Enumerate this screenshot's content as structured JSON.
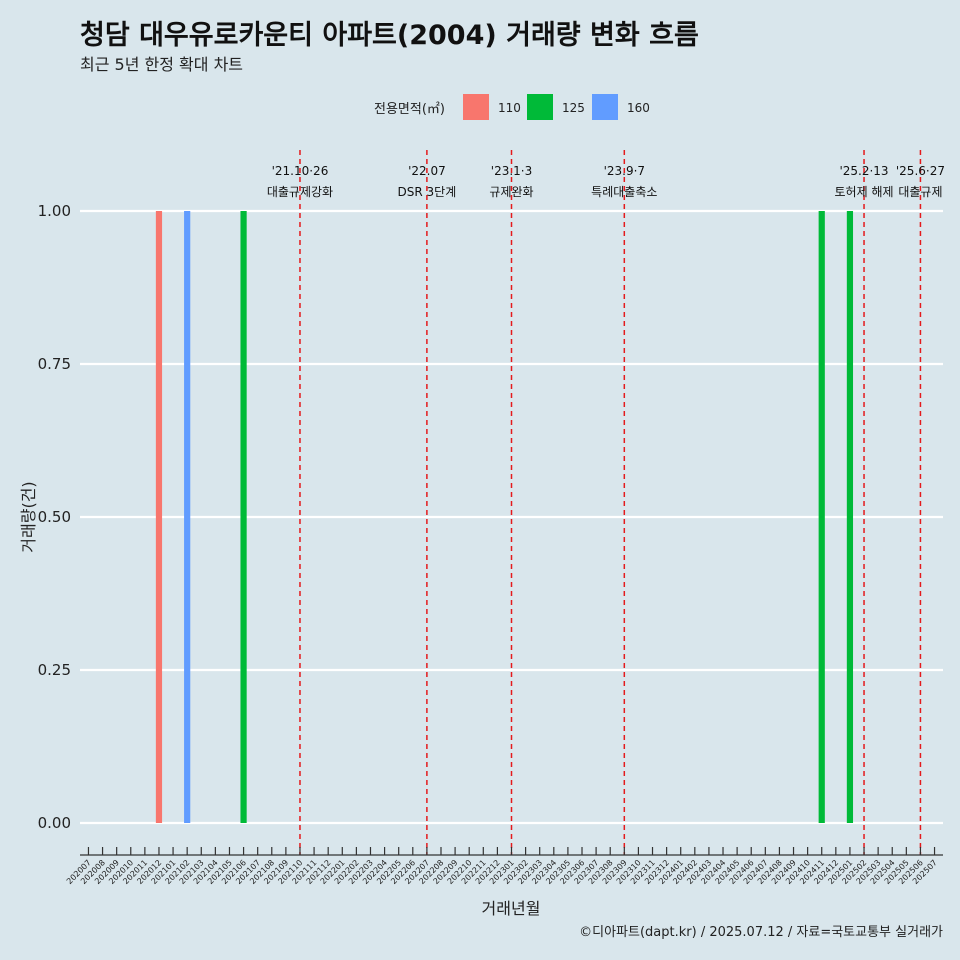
{
  "chart_data": {
    "type": "bar",
    "title": "청담 대우유로카운티 아파트(2004) 거래량 변화 흐름",
    "subtitle": "최근 5년 한정 확대 차트",
    "xlabel": "거래년월",
    "ylabel": "거래량(건)",
    "legend_title": "전용면적(㎡)",
    "legend_position": "top",
    "caption": "©디아파트(dapt.kr) / 2025.07.12 / 자료=국토교통부 실거래가",
    "ylim": [
      0,
      1
    ],
    "yticks": [
      "0.00",
      "0.25",
      "0.50",
      "0.75",
      "1.00"
    ],
    "grid": true,
    "categories": [
      "202007",
      "202008",
      "202009",
      "202010",
      "202011",
      "202012",
      "202101",
      "202102",
      "202103",
      "202104",
      "202105",
      "202106",
      "202107",
      "202108",
      "202109",
      "202110",
      "202111",
      "202112",
      "202201",
      "202202",
      "202203",
      "202204",
      "202205",
      "202206",
      "202207",
      "202208",
      "202209",
      "202210",
      "202211",
      "202212",
      "202301",
      "202302",
      "202303",
      "202304",
      "202305",
      "202306",
      "202307",
      "202308",
      "202309",
      "202310",
      "202311",
      "202312",
      "202401",
      "202402",
      "202403",
      "202404",
      "202405",
      "202406",
      "202407",
      "202408",
      "202409",
      "202410",
      "202411",
      "202412",
      "202501",
      "202502",
      "202503",
      "202504",
      "202505",
      "202506",
      "202507"
    ],
    "series": [
      {
        "name": "110",
        "color": "#f8766d",
        "points": [
          {
            "x": "202012",
            "y": 1
          }
        ]
      },
      {
        "name": "125",
        "color": "#00ba38",
        "points": [
          {
            "x": "202106",
            "y": 1
          },
          {
            "x": "202411",
            "y": 1
          },
          {
            "x": "202501",
            "y": 1
          }
        ]
      },
      {
        "name": "160",
        "color": "#619cff",
        "points": [
          {
            "x": "202102",
            "y": 1
          }
        ]
      }
    ],
    "events": [
      {
        "x": "202110",
        "date": "'21.10·26",
        "label": "대출규제강화"
      },
      {
        "x": "202207",
        "date": "'22.07",
        "label": "DSR 3단계"
      },
      {
        "x": "202301",
        "date": "'23.1·3",
        "label": "규제완화"
      },
      {
        "x": "202309",
        "date": "'23.9·7",
        "label": "특례대출축소"
      },
      {
        "x": "202502",
        "date": "'25.2·13",
        "label": "토허제 해제"
      },
      {
        "x": "202506",
        "date": "'25.6·27",
        "label": "대출규제"
      }
    ],
    "event_line_color": "#e41a1c"
  }
}
